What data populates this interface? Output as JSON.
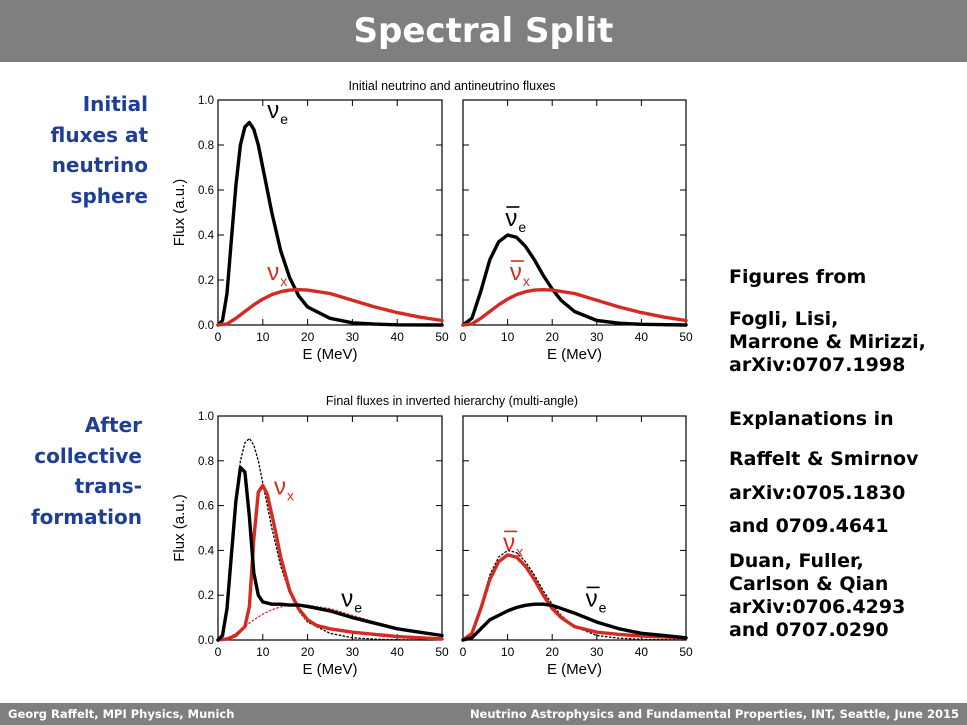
{
  "slide": {
    "title": "Spectral Split",
    "footer_left": "Georg Raffelt, MPI Physics, Munich",
    "footer_right": "Neutrino Astrophysics and Fundamental Properties, INT, Seattle, June 2015",
    "label_initial": "Initial\nfluxes at\nneutrino\nsphere",
    "label_after": "After\ncollective\ntrans-\nformation",
    "figures_from": "Figures from",
    "ref_fogli": "Fogli, Lisi,\nMarrone & Mirizzi,\narXiv:0707.1998",
    "explanations_in": "Explanations in",
    "ref_raffelt_1": "Raffelt & Smirnov",
    "ref_raffelt_2": "arXiv:0705.1830",
    "ref_raffelt_3": "and 0709.4641",
    "ref_duan": "Duan, Fuller,\nCarlson & Qian\narXiv:0706.4293\nand 0707.0290"
  },
  "colors": {
    "banner": "#7f7f7f",
    "side_label": "#1f3f95",
    "red": "#d42a20",
    "black": "#000000"
  },
  "chart_data": [
    {
      "type": "line",
      "title": "Initial neutrino and antineutrino fluxes",
      "xlabel": "E (MeV)",
      "ylabel": "Flux (a.u.)",
      "xlim": [
        0,
        50
      ],
      "ylim": [
        0,
        1.0
      ],
      "xticks": [
        0,
        10,
        20,
        30,
        40,
        50
      ],
      "yticks": [
        0.0,
        0.2,
        0.4,
        0.6,
        0.8,
        1.0
      ],
      "panels": [
        {
          "series": [
            {
              "name": "νe",
              "color": "#000000",
              "style": "solid",
              "x": [
                0,
                1,
                2,
                3,
                4,
                5,
                6,
                7,
                8,
                9,
                10,
                12,
                14,
                16,
                18,
                20,
                25,
                30,
                35,
                40,
                50
              ],
              "y": [
                0,
                0.02,
                0.14,
                0.38,
                0.62,
                0.8,
                0.88,
                0.9,
                0.87,
                0.8,
                0.7,
                0.5,
                0.33,
                0.21,
                0.13,
                0.08,
                0.03,
                0.01,
                0.004,
                0.001,
                0
              ]
            },
            {
              "name": "νx",
              "color": "#d42a20",
              "style": "solid",
              "x": [
                0,
                2,
                4,
                6,
                8,
                10,
                12,
                14,
                16,
                18,
                20,
                25,
                30,
                35,
                40,
                45,
                50
              ],
              "y": [
                0,
                0.005,
                0.03,
                0.06,
                0.09,
                0.115,
                0.135,
                0.148,
                0.155,
                0.157,
                0.155,
                0.14,
                0.11,
                0.08,
                0.055,
                0.035,
                0.02
              ]
            }
          ],
          "labels": [
            {
              "series": "νe",
              "text": "ν",
              "sub": "e",
              "bar": false,
              "at_x": 11,
              "at_y": 0.92,
              "color": "#000000"
            },
            {
              "series": "νx",
              "text": "ν",
              "sub": "x",
              "bar": false,
              "at_x": 11,
              "at_y": 0.2,
              "color": "#d42a20"
            }
          ]
        },
        {
          "series": [
            {
              "name": "ν̄e",
              "color": "#000000",
              "style": "solid",
              "x": [
                0,
                2,
                4,
                6,
                8,
                10,
                12,
                14,
                16,
                18,
                20,
                22,
                25,
                30,
                35,
                40,
                50
              ],
              "y": [
                0,
                0.03,
                0.15,
                0.29,
                0.37,
                0.4,
                0.39,
                0.35,
                0.29,
                0.22,
                0.16,
                0.11,
                0.06,
                0.02,
                0.008,
                0.003,
                0
              ]
            },
            {
              "name": "ν̄x",
              "color": "#d42a20",
              "style": "solid",
              "x": [
                0,
                2,
                4,
                6,
                8,
                10,
                12,
                14,
                16,
                18,
                20,
                25,
                30,
                35,
                40,
                45,
                50
              ],
              "y": [
                0,
                0.005,
                0.03,
                0.06,
                0.09,
                0.115,
                0.135,
                0.148,
                0.155,
                0.157,
                0.155,
                0.14,
                0.11,
                0.08,
                0.055,
                0.035,
                0.02
              ]
            }
          ],
          "labels": [
            {
              "series": "ν̄e",
              "text": "ν",
              "sub": "e",
              "bar": true,
              "at_x": 9.5,
              "at_y": 0.44,
              "color": "#000000"
            },
            {
              "series": "ν̄x",
              "text": "ν",
              "sub": "x",
              "bar": true,
              "at_x": 10.5,
              "at_y": 0.2,
              "color": "#d42a20"
            }
          ]
        }
      ]
    },
    {
      "type": "line",
      "title": "Final fluxes in inverted hierarchy (multi-angle)",
      "xlabel": "E (MeV)",
      "ylabel": "Flux (a.u.)",
      "xlim": [
        0,
        50
      ],
      "ylim": [
        0,
        1.0
      ],
      "xticks": [
        0,
        10,
        20,
        30,
        40,
        50
      ],
      "yticks": [
        0.0,
        0.2,
        0.4,
        0.6,
        0.8,
        1.0
      ],
      "panels": [
        {
          "series": [
            {
              "name": "νe initial",
              "color": "#000000",
              "style": "dotted",
              "x": [
                0,
                1,
                2,
                3,
                4,
                5,
                6,
                7,
                8,
                9,
                10,
                12,
                14,
                16,
                18,
                20,
                25,
                30,
                35,
                40,
                50
              ],
              "y": [
                0,
                0.02,
                0.14,
                0.38,
                0.62,
                0.8,
                0.88,
                0.9,
                0.87,
                0.8,
                0.7,
                0.5,
                0.33,
                0.21,
                0.13,
                0.08,
                0.03,
                0.01,
                0.004,
                0.001,
                0
              ]
            },
            {
              "name": "νx initial",
              "color": "#d42a20",
              "style": "dotted",
              "x": [
                0,
                2,
                4,
                6,
                8,
                10,
                12,
                14,
                16,
                18,
                20,
                25,
                30,
                35,
                40,
                45,
                50
              ],
              "y": [
                0,
                0.005,
                0.03,
                0.06,
                0.09,
                0.115,
                0.135,
                0.148,
                0.155,
                0.157,
                0.155,
                0.14,
                0.11,
                0.08,
                0.055,
                0.035,
                0.02
              ]
            },
            {
              "name": "νx",
              "color": "#d42a20",
              "style": "solid",
              "x": [
                0,
                2,
                4,
                6,
                7,
                8,
                9,
                10,
                11,
                12,
                13,
                14,
                16,
                18,
                20,
                22,
                25,
                30,
                35,
                40,
                50
              ],
              "y": [
                0,
                0.005,
                0.02,
                0.06,
                0.15,
                0.45,
                0.66,
                0.69,
                0.65,
                0.56,
                0.47,
                0.37,
                0.22,
                0.14,
                0.09,
                0.065,
                0.05,
                0.035,
                0.025,
                0.015,
                0.005
              ]
            },
            {
              "name": "νe",
              "color": "#000000",
              "style": "solid",
              "x": [
                0,
                1,
                2,
                3,
                4,
                5,
                6,
                7,
                8,
                9,
                10,
                12,
                14,
                16,
                18,
                20,
                25,
                30,
                35,
                40,
                45,
                50
              ],
              "y": [
                0,
                0.02,
                0.14,
                0.38,
                0.62,
                0.77,
                0.75,
                0.55,
                0.3,
                0.2,
                0.17,
                0.16,
                0.16,
                0.156,
                0.156,
                0.15,
                0.13,
                0.1,
                0.075,
                0.05,
                0.035,
                0.02
              ]
            }
          ],
          "labels": [
            {
              "series": "νx",
              "text": "ν",
              "sub": "x",
              "bar": false,
              "at_x": 12.5,
              "at_y": 0.65,
              "color": "#d42a20"
            },
            {
              "series": "νe",
              "text": "ν",
              "sub": "e",
              "bar": false,
              "at_x": 27.5,
              "at_y": 0.15,
              "color": "#000000"
            }
          ]
        },
        {
          "series": [
            {
              "name": "ν̄e initial",
              "color": "#000000",
              "style": "dotted",
              "x": [
                0,
                2,
                4,
                6,
                8,
                10,
                12,
                14,
                16,
                18,
                20,
                22,
                25,
                30,
                35,
                40,
                50
              ],
              "y": [
                0,
                0.03,
                0.15,
                0.29,
                0.37,
                0.4,
                0.39,
                0.35,
                0.29,
                0.22,
                0.16,
                0.11,
                0.06,
                0.02,
                0.008,
                0.003,
                0
              ]
            },
            {
              "name": "ν̄x",
              "color": "#d42a20",
              "style": "solid",
              "x": [
                0,
                2,
                4,
                6,
                8,
                10,
                12,
                14,
                16,
                18,
                20,
                22,
                25,
                30,
                35,
                40,
                50
              ],
              "y": [
                0,
                0.03,
                0.14,
                0.27,
                0.35,
                0.38,
                0.37,
                0.33,
                0.27,
                0.2,
                0.14,
                0.1,
                0.06,
                0.035,
                0.025,
                0.018,
                0.01
              ]
            },
            {
              "name": "ν̄e",
              "color": "#000000",
              "style": "solid",
              "x": [
                0,
                2,
                4,
                6,
                8,
                10,
                12,
                14,
                16,
                18,
                20,
                25,
                30,
                35,
                40,
                45,
                50
              ],
              "y": [
                0,
                0.01,
                0.05,
                0.09,
                0.11,
                0.13,
                0.145,
                0.155,
                0.16,
                0.16,
                0.155,
                0.12,
                0.08,
                0.05,
                0.03,
                0.02,
                0.01
              ]
            }
          ],
          "labels": [
            {
              "series": "ν̄x",
              "text": "ν",
              "sub": "x",
              "bar": true,
              "at_x": 9,
              "at_y": 0.4,
              "color": "#d42a20"
            },
            {
              "series": "ν̄e",
              "text": "ν",
              "sub": "e",
              "bar": true,
              "at_x": 27.5,
              "at_y": 0.15,
              "color": "#000000"
            }
          ]
        }
      ]
    }
  ]
}
